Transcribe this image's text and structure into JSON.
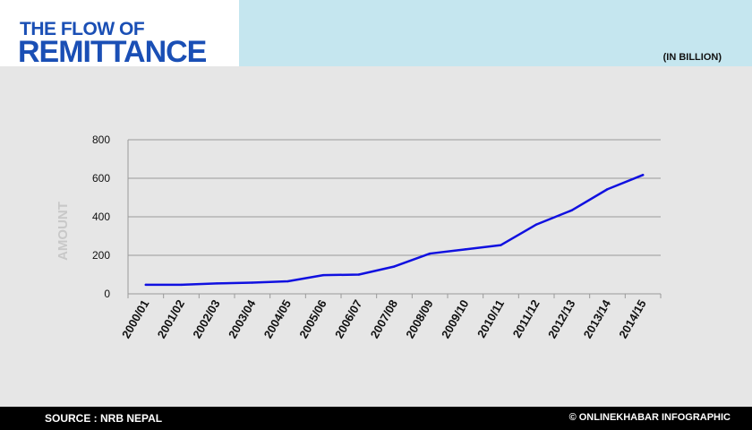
{
  "header": {
    "title_line1": "THE FLOW OF",
    "title_line2": "REMITTANCE",
    "unit_note": "(IN BILLION)"
  },
  "footer": {
    "source": "SOURCE : NRB NEPAL",
    "credit": "© ONLINEKHABAR INFOGRAPHIC"
  },
  "colors": {
    "accent": "#1a4fb5",
    "line": "#1010e0",
    "panel": "#c5e6ef",
    "background": "#e6e6e6",
    "grid": "#9a9a9a",
    "axis_label": "#c8c8c8"
  },
  "chart_data": {
    "type": "line",
    "title": "",
    "xlabel": "",
    "ylabel": "AMOUNT",
    "ylim": [
      0,
      800
    ],
    "yticks": [
      0,
      200,
      400,
      600,
      800
    ],
    "grid": true,
    "categories": [
      "2000/01",
      "2001/02",
      "2002/03",
      "2003/04",
      "2004/05",
      "2005/06",
      "2006/07",
      "2007/08",
      "2008/09",
      "2009/10",
      "2010/11",
      "2011/12",
      "2012/13",
      "2013/14",
      "2014/15"
    ],
    "series": [
      {
        "values": [
          47,
          47,
          54,
          58,
          65,
          97,
          100,
          142,
          209,
          231,
          253,
          360,
          434,
          543,
          617
        ]
      }
    ]
  }
}
